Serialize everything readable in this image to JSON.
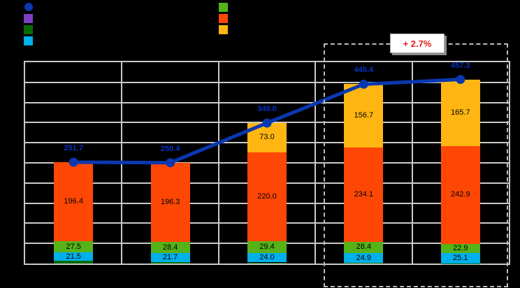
{
  "window": {
    "background": "#000000"
  },
  "legend": {
    "left": [
      {
        "name": "line-total-marker",
        "shape": "circle",
        "color": "#0B38B0",
        "label": ""
      },
      {
        "name": "purple-series-marker",
        "shape": "square",
        "color": "#7B3FC4",
        "label": ""
      },
      {
        "name": "darkgreen-series-marker",
        "shape": "square",
        "color": "#046B04",
        "label": ""
      },
      {
        "name": "cyan-series-marker",
        "shape": "square",
        "color": "#00B0EB",
        "label": ""
      }
    ],
    "right": [
      {
        "name": "green-series-marker",
        "shape": "square",
        "color": "#55B319",
        "label": ""
      },
      {
        "name": "orange-series-marker",
        "shape": "square",
        "color": "#FF4705",
        "label": ""
      },
      {
        "name": "amber-series-marker",
        "shape": "square",
        "color": "#FFB612",
        "label": ""
      }
    ]
  },
  "annotation": {
    "text": "+ 2.7%",
    "color": "#E02020"
  },
  "chart_data": {
    "type": "bar",
    "subtype": "stacked-bars-with-total-line",
    "title": "",
    "xlabel": "",
    "ylabel": "",
    "categories": [
      "",
      "",
      "",
      "",
      ""
    ],
    "series": [
      {
        "name": "cyan-segment",
        "color": "#00B0EB",
        "values": [
          21.5,
          21.7,
          24.0,
          24.9,
          25.1
        ]
      },
      {
        "name": "green-segment",
        "color": "#55B319",
        "values": [
          27.5,
          28.4,
          29.4,
          28.4,
          22.9
        ]
      },
      {
        "name": "orange-segment",
        "color": "#FF4705",
        "values": [
          196.4,
          196.3,
          220.0,
          234.1,
          242.9
        ]
      },
      {
        "name": "amber-segment",
        "color": "#FFB612",
        "values": [
          0,
          0,
          73.0,
          156.7,
          165.7
        ]
      }
    ],
    "remainder_segment": {
      "name": "darkgreen-segment",
      "color": "#046B04",
      "note": "thin unlabeled bottom sliver = line total minus labeled segments"
    },
    "line": {
      "name": "total-line",
      "color": "#0B38B0",
      "label_color": "#0433C8",
      "values": [
        251.7,
        250.4,
        349.0,
        445.4,
        457.3
      ]
    },
    "ylim": [
      0,
      500
    ],
    "grid_step": 50,
    "grid": "on",
    "legend_position": "top",
    "axis_tick_labels_visible": false,
    "highlight": {
      "category_start": 4,
      "category_end": 5,
      "annotation": "+ 2.7%"
    }
  }
}
